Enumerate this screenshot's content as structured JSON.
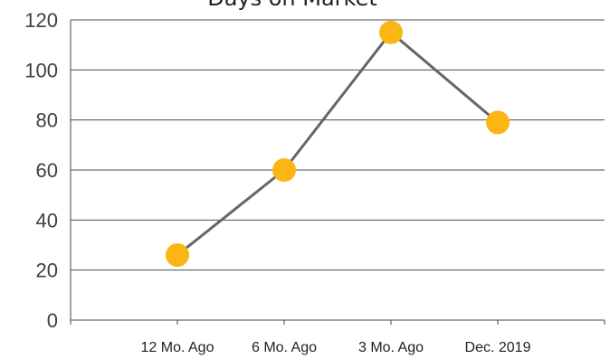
{
  "chart_data": {
    "type": "line",
    "title": "Days on Market",
    "categories": [
      "12 Mo. Ago",
      "6 Mo. Ago",
      "3 Mo. Ago",
      "Dec. 2019"
    ],
    "series": [
      {
        "values": [
          26,
          60,
          115,
          79
        ]
      }
    ],
    "ylim": [
      0,
      120
    ],
    "yticks": [
      0,
      20,
      40,
      60,
      80,
      100,
      120
    ],
    "grid": true,
    "colors": {
      "line": "#666666",
      "marker": "#FBB615",
      "grid": "#4d4d4d"
    }
  }
}
